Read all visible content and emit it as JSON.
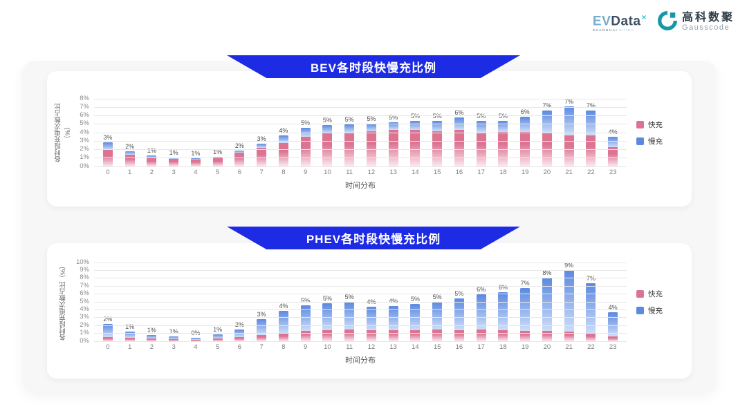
{
  "header": {
    "evdata": {
      "part1": "EV",
      "part2": "Data",
      "sup": "×",
      "sub1": "SHANGHAI",
      "sub2": "CHINA"
    },
    "gausscode": {
      "cn": "高科数聚",
      "en": "Gausscode",
      "icon": "gausscode-g-icon",
      "icon_color": "#1797a7"
    }
  },
  "ui": {
    "banner_color": "#1d2be4",
    "panel_bg": "#f7f7f8",
    "card_bg": "#ffffff",
    "gridline_color": "#e7e7e8"
  },
  "chart_data": [
    {
      "id": "bev",
      "type": "bar",
      "stacked": true,
      "title": "BEV各时段快慢充比例",
      "xlabel": "时间分布",
      "ylabel": "各时段充电次数占比（%）",
      "ylim": [
        0,
        8
      ],
      "ytick_step": 1,
      "grid": true,
      "legend_position": "right",
      "categories": [
        "0",
        "1",
        "2",
        "3",
        "4",
        "5",
        "6",
        "7",
        "8",
        "9",
        "10",
        "11",
        "12",
        "13",
        "14",
        "15",
        "16",
        "17",
        "18",
        "19",
        "20",
        "21",
        "22",
        "23"
      ],
      "series": [
        {
          "name": "快充",
          "color": "#dc7391",
          "fade": "#fbe9f0",
          "values": [
            1.95,
            1.4,
            1.0,
            0.9,
            0.85,
            1.0,
            1.6,
            2.2,
            2.8,
            3.5,
            3.9,
            4.0,
            4.2,
            4.3,
            4.3,
            4.2,
            4.3,
            4.0,
            4.1,
            4.1,
            4.0,
            3.75,
            3.7,
            2.3
          ]
        },
        {
          "name": "慢充",
          "color": "#5c89e0",
          "fade": "#cdddf8",
          "values": [
            0.95,
            0.4,
            0.3,
            0.2,
            0.1,
            0.15,
            0.3,
            0.5,
            0.9,
            1.1,
            1.0,
            1.0,
            0.9,
            0.9,
            1.1,
            1.2,
            1.5,
            1.4,
            1.3,
            1.8,
            2.6,
            3.5,
            2.9,
            1.2
          ]
        }
      ],
      "total_labels": [
        "3%",
        "2%",
        "1%",
        "1%",
        "1%",
        "1%",
        "2%",
        "3%",
        "4%",
        "5%",
        "5%",
        "5%",
        "5%",
        "5%",
        "5%",
        "5%",
        "6%",
        "5%",
        "5%",
        "6%",
        "7%",
        "7%",
        "7%",
        "4%"
      ]
    },
    {
      "id": "phev",
      "type": "bar",
      "stacked": true,
      "title": "PHEV各时段快慢充比例",
      "xlabel": "时间分布",
      "ylabel": "各时段充电次数占比（%）",
      "ylim": [
        0,
        10
      ],
      "ytick_step": 1,
      "grid": true,
      "legend_position": "right",
      "categories": [
        "0",
        "1",
        "2",
        "3",
        "4",
        "5",
        "6",
        "7",
        "8",
        "9",
        "10",
        "11",
        "12",
        "13",
        "14",
        "15",
        "16",
        "17",
        "18",
        "19",
        "20",
        "21",
        "22",
        "23"
      ],
      "series": [
        {
          "name": "快充",
          "color": "#dc7391",
          "fade": "#fbe9f0",
          "values": [
            0.5,
            0.4,
            0.35,
            0.3,
            0.2,
            0.35,
            0.55,
            0.8,
            1.0,
            1.3,
            1.4,
            1.5,
            1.4,
            1.4,
            1.4,
            1.5,
            1.4,
            1.5,
            1.4,
            1.35,
            1.3,
            1.2,
            1.0,
            0.6
          ]
        },
        {
          "name": "慢充",
          "color": "#5c89e0",
          "fade": "#cdddf8",
          "values": [
            1.7,
            0.8,
            0.45,
            0.3,
            0.25,
            0.5,
            0.95,
            2.0,
            2.9,
            3.3,
            3.4,
            3.5,
            3.0,
            3.05,
            3.3,
            3.5,
            4.0,
            4.5,
            4.8,
            5.4,
            6.8,
            7.9,
            6.4,
            3.05
          ]
        }
      ],
      "total_labels": [
        "2%",
        "1%",
        "1%",
        "1%",
        "0%",
        "1%",
        "2%",
        "3%",
        "4%",
        "5%",
        "5%",
        "5%",
        "4%",
        "4%",
        "5%",
        "5%",
        "5%",
        "6%",
        "6%",
        "7%",
        "8%",
        "9%",
        "7%",
        "4%"
      ]
    }
  ]
}
